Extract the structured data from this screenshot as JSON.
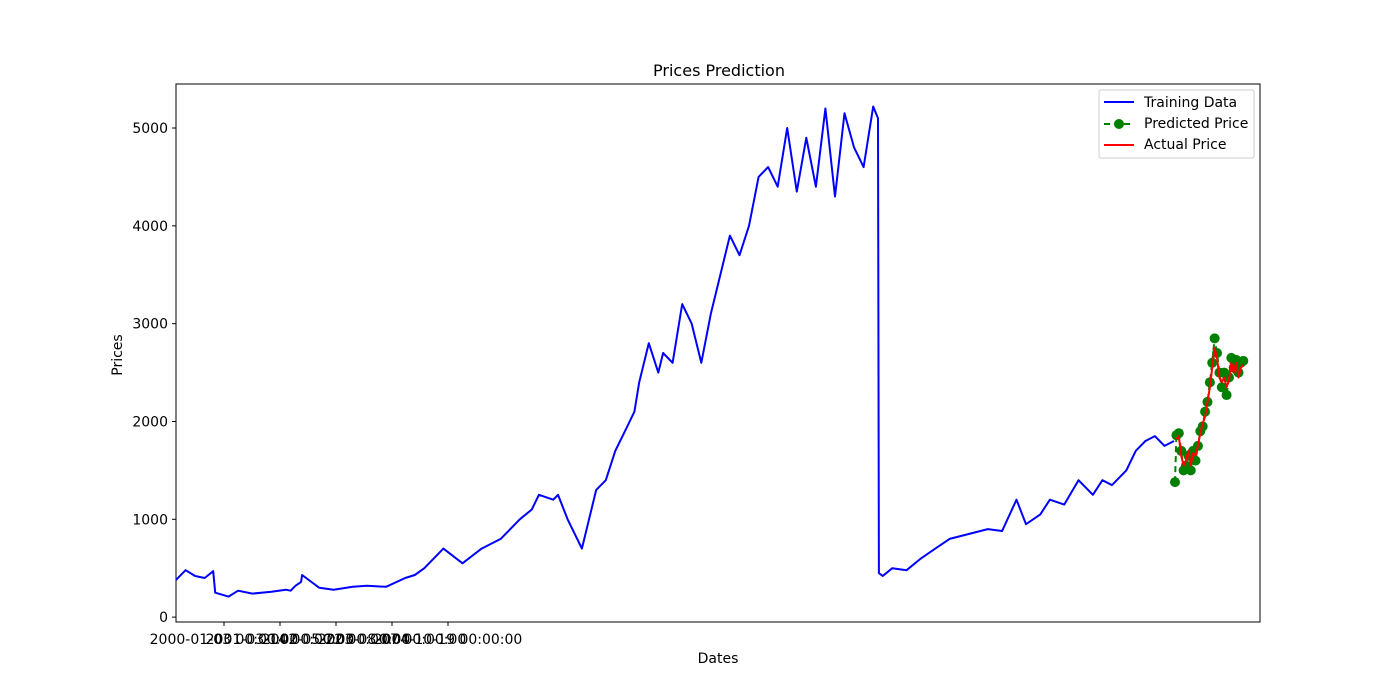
{
  "chart_data": {
    "type": "line",
    "title": "Prices Prediction",
    "xlabel": "Dates",
    "ylabel": "Prices",
    "ylim": [
      -50,
      5450
    ],
    "y_ticks": [
      0,
      1000,
      2000,
      3000,
      4000,
      5000
    ],
    "x_tick_labels": [
      "2000-01-03 00:00:00",
      "2001-03-14 00:00:00",
      "2002-05-22 00:00:00",
      "2003-08-07 00:00:00",
      "2004-10-19 00:00:00"
    ],
    "legend_position": "top-right",
    "grid": false,
    "series": [
      {
        "name": "Training Data",
        "color": "#0000ff",
        "style": "solid",
        "x": [
          0,
          20,
          40,
          60,
          78,
          82,
          110,
          130,
          160,
          200,
          230,
          240,
          250,
          262,
          264,
          300,
          330,
          370,
          400,
          440,
          480,
          500,
          520,
          560,
          600,
          640,
          680,
          700,
          720,
          745,
          760,
          790,
          800,
          820,
          850,
          880,
          900,
          920,
          940,
          960,
          970,
          990,
          1010,
          1020,
          1040,
          1060,
          1080,
          1100,
          1120,
          1130,
          1160,
          1180,
          1200,
          1220,
          1240,
          1260,
          1280,
          1300,
          1320,
          1340,
          1360,
          1380,
          1400,
          1420,
          1440,
          1460,
          1470,
          1472,
          1480,
          1500,
          1530,
          1560,
          1590,
          1620,
          1660,
          1700,
          1730,
          1760,
          1780,
          1810,
          1830,
          1860,
          1890,
          1920,
          1940,
          1960,
          1990,
          2010,
          2030,
          2050,
          2070,
          2090
        ],
        "y": [
          380,
          480,
          420,
          400,
          470,
          250,
          210,
          270,
          240,
          260,
          280,
          270,
          320,
          360,
          430,
          300,
          280,
          310,
          320,
          310,
          400,
          430,
          500,
          700,
          550,
          700,
          800,
          900,
          1000,
          1100,
          1250,
          1200,
          1250,
          1000,
          700,
          1300,
          1400,
          1700,
          1900,
          2100,
          2400,
          2800,
          2500,
          2700,
          2600,
          3200,
          3000,
          2600,
          3100,
          3300,
          3900,
          3700,
          4000,
          4500,
          4600,
          4400,
          5000,
          4350,
          4900,
          4400,
          5200,
          4300,
          5150,
          4800,
          4600,
          5220,
          5100,
          450,
          420,
          500,
          480,
          600,
          700,
          800,
          850,
          900,
          880,
          1200,
          950,
          1050,
          1200,
          1150,
          1400,
          1250,
          1400,
          1350,
          1500,
          1700,
          1800,
          1850,
          1750,
          1800
        ]
      },
      {
        "name": "Predicted Price",
        "color": "#008000",
        "style": "dashed",
        "marker": "circle",
        "x": [
          2092,
          2095,
          2100,
          2105,
          2110,
          2115,
          2120,
          2125,
          2130,
          2135,
          2140,
          2145,
          2150,
          2155,
          2160,
          2165,
          2170,
          2175,
          2180,
          2185,
          2190,
          2195,
          2200,
          2205,
          2210,
          2215,
          2220,
          2225,
          2230,
          2235
        ],
        "y": [
          1380,
          1860,
          1880,
          1700,
          1500,
          1550,
          1650,
          1500,
          1700,
          1600,
          1750,
          1900,
          1950,
          2100,
          2200,
          2400,
          2600,
          2850,
          2700,
          2500,
          2350,
          2500,
          2270,
          2450,
          2650,
          2550,
          2630,
          2500,
          2600,
          2620
        ]
      },
      {
        "name": "Actual Price",
        "color": "#ff0000",
        "style": "solid",
        "x": [
          2095,
          2100,
          2105,
          2110,
          2115,
          2120,
          2125,
          2130,
          2135,
          2140,
          2145,
          2150,
          2155,
          2160,
          2165,
          2170,
          2175,
          2180,
          2185,
          2190,
          2195,
          2200,
          2205,
          2210,
          2215,
          2220,
          2225,
          2230,
          2235
        ],
        "y": [
          1820,
          1850,
          1650,
          1550,
          1600,
          1700,
          1550,
          1680,
          1650,
          1750,
          1880,
          1980,
          2050,
          2200,
          2350,
          2550,
          2750,
          2650,
          2450,
          2400,
          2450,
          2350,
          2420,
          2600,
          2500,
          2600,
          2450,
          2550,
          2580
        ]
      }
    ]
  }
}
